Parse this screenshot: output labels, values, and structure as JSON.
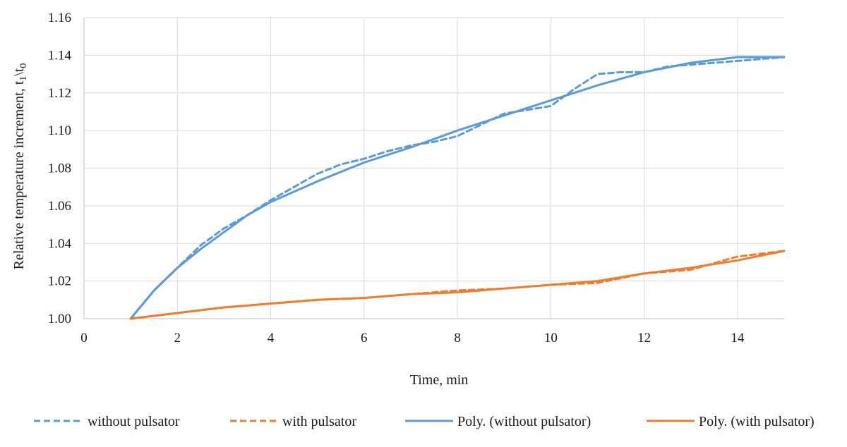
{
  "chart_data": {
    "type": "line",
    "title": "",
    "xlabel": "Time, min",
    "ylabel": "Relative temperature increment, t",
    "ylabel_sub1": "1",
    "ylabel_sep": "\\t",
    "ylabel_sub2": "0",
    "xlim": [
      0,
      15
    ],
    "ylim": [
      1.0,
      1.16
    ],
    "x_ticks": [
      0,
      2,
      4,
      6,
      8,
      10,
      12,
      14
    ],
    "x_tick_labels": [
      "0",
      "2",
      "4",
      "6",
      "8",
      "10",
      "12",
      "14"
    ],
    "y_ticks": [
      1.0,
      1.02,
      1.04,
      1.06,
      1.08,
      1.1,
      1.12,
      1.14,
      1.16
    ],
    "y_tick_labels": [
      "1.00",
      "1.02",
      "1.04",
      "1.06",
      "1.08",
      "1.10",
      "1.12",
      "1.14",
      "1.16"
    ],
    "grid": true,
    "legend_position": "bottom",
    "series": [
      {
        "name": "without pulsator",
        "style": "dashed",
        "color": "#5b9bd5",
        "x": [
          1,
          1.5,
          2,
          2.5,
          3,
          3.5,
          4,
          4.5,
          5,
          5.5,
          6,
          6.5,
          7,
          7.5,
          8,
          8.5,
          9,
          9.5,
          10,
          10.5,
          11,
          11.5,
          12,
          12.5,
          13,
          13.5,
          14,
          14.5,
          15
        ],
        "values": [
          1.0,
          1.015,
          1.027,
          1.039,
          1.048,
          1.055,
          1.063,
          1.07,
          1.077,
          1.082,
          1.085,
          1.089,
          1.092,
          1.094,
          1.097,
          1.103,
          1.109,
          1.111,
          1.113,
          1.122,
          1.13,
          1.131,
          1.131,
          1.134,
          1.135,
          1.136,
          1.137,
          1.138,
          1.139
        ]
      },
      {
        "name": "with pulsator",
        "style": "dashed",
        "color": "#ed7d31",
        "x": [
          1,
          2,
          3,
          4,
          5,
          6,
          7,
          7.5,
          8,
          9,
          10,
          11,
          12,
          13,
          14,
          15
        ],
        "values": [
          1.0,
          1.003,
          1.006,
          1.008,
          1.01,
          1.011,
          1.013,
          1.014,
          1.015,
          1.016,
          1.018,
          1.019,
          1.024,
          1.026,
          1.033,
          1.036
        ]
      },
      {
        "name": "Poly. (without pulsator)",
        "style": "solid",
        "color": "#5b9bd5",
        "x": [
          1,
          1.5,
          2,
          2.5,
          3,
          3.5,
          4,
          5,
          6,
          7,
          8,
          9,
          10,
          11,
          12,
          13,
          14,
          15
        ],
        "values": [
          1.0,
          1.015,
          1.027,
          1.037,
          1.046,
          1.055,
          1.062,
          1.073,
          1.083,
          1.091,
          1.1,
          1.108,
          1.116,
          1.124,
          1.131,
          1.136,
          1.139,
          1.139
        ]
      },
      {
        "name": "Poly. (with pulsator)",
        "style": "solid",
        "color": "#ed7d31",
        "x": [
          1,
          2,
          3,
          4,
          5,
          6,
          7,
          8,
          9,
          10,
          11,
          12,
          13,
          14,
          15
        ],
        "values": [
          1.0,
          1.003,
          1.006,
          1.008,
          1.01,
          1.011,
          1.013,
          1.014,
          1.016,
          1.018,
          1.02,
          1.024,
          1.027,
          1.031,
          1.036
        ]
      }
    ]
  }
}
